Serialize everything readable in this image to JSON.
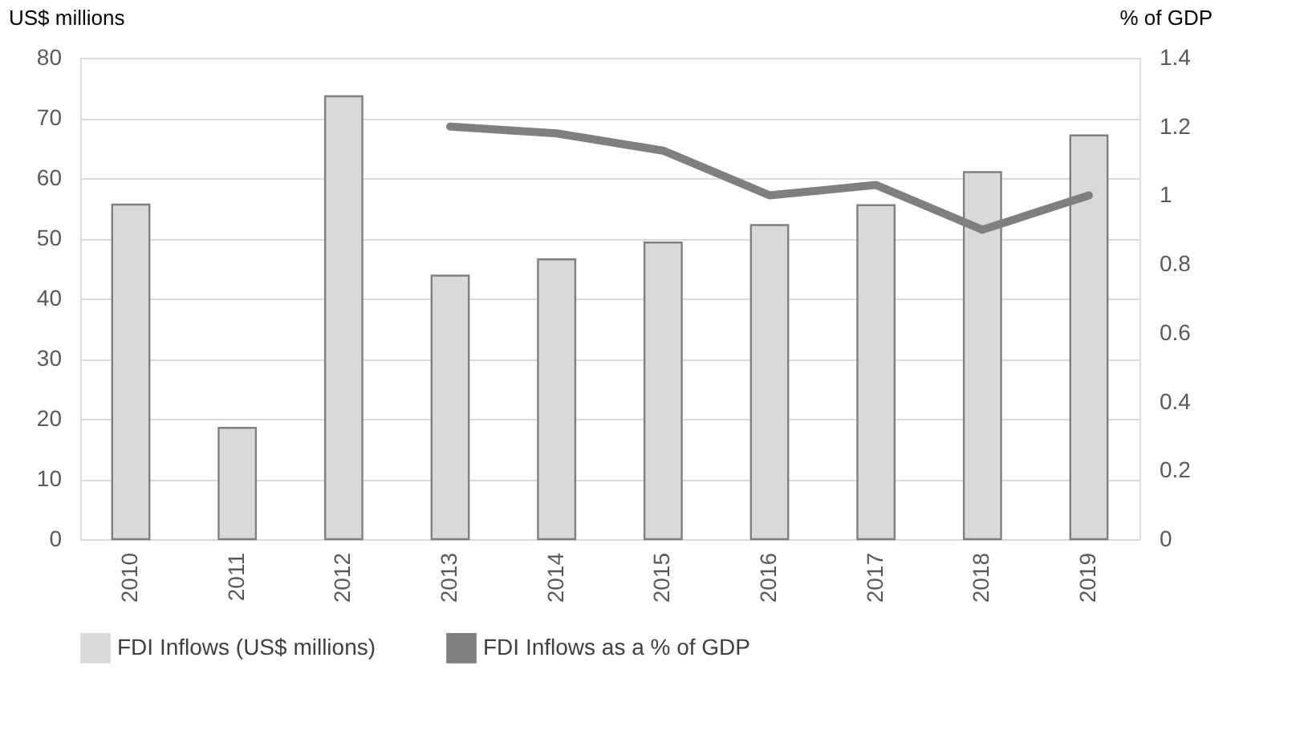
{
  "chart_data": {
    "type": "bar",
    "ylabel": "US$ millions",
    "y2label": "% of GDP",
    "categories": [
      "2010",
      "2011",
      "2012",
      "2013",
      "2014",
      "2015",
      "2016",
      "2017",
      "2018",
      "2019"
    ],
    "series": [
      {
        "name": "FDI Inflows (US$ millions)",
        "color": "#d9d9d9",
        "values": [
          55.6,
          18.5,
          73.6,
          43.8,
          46.5,
          49.3,
          52.2,
          55.5,
          61.0,
          67.1
        ]
      },
      {
        "name": "FDI Inflows as a % of GDP",
        "type": "line",
        "axis": "y2",
        "color": "#7f7f7f",
        "values": [
          null,
          null,
          null,
          1.2,
          1.18,
          1.13,
          1.0,
          1.03,
          0.9,
          1.0
        ]
      }
    ],
    "ylim": [
      0,
      80
    ],
    "yticks": [
      0,
      10,
      20,
      30,
      40,
      50,
      60,
      70,
      80
    ],
    "y2lim": [
      0,
      1.4
    ],
    "y2ticks": [
      0,
      0.2,
      0.4,
      0.6,
      0.8,
      1,
      1.2,
      1.4
    ],
    "grid": "y",
    "legend": "bottom",
    "marker": "none",
    "line_style": "solid"
  }
}
